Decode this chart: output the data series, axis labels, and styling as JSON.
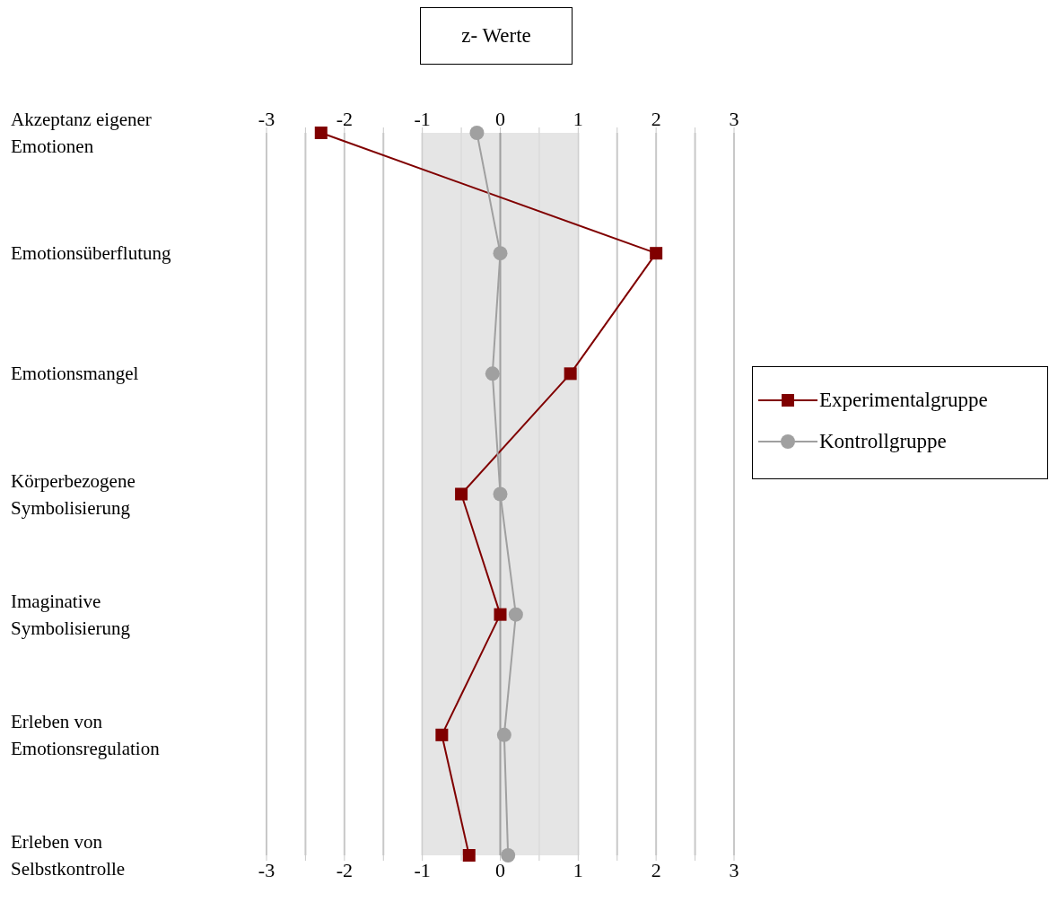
{
  "chart_data": {
    "type": "line",
    "title": "z- Werte",
    "orientation": "horizontal",
    "categories": [
      "Akzeptanz eigener Emotionen",
      "Emotionsüberflutung",
      "Emotionsmangel",
      "Körperbezogene Symbolisierung",
      "Imaginative Symbolisierung",
      "Erleben von Emotionsregulation",
      "Erleben von Selbstkontrolle"
    ],
    "series": [
      {
        "name": "Experimentalgruppe",
        "color": "#800000",
        "marker": "square",
        "values": [
          -2.3,
          2.0,
          0.9,
          -0.5,
          0.0,
          -0.75,
          -0.4
        ]
      },
      {
        "name": "Kontrollgruppe",
        "color": "#a0a0a0",
        "marker": "circle",
        "values": [
          -0.3,
          0.0,
          -0.1,
          0.0,
          0.2,
          0.05,
          0.1
        ]
      }
    ],
    "xlim": [
      -3,
      3
    ],
    "xticks": [
      -3,
      {
        "value": -2.5,
        "label": null
      },
      -2,
      {
        "value": -1.5,
        "label": null
      },
      -1,
      {
        "value": -0.5,
        "label": null
      },
      0,
      {
        "value": 0.5,
        "label": null
      },
      1,
      {
        "value": 1.5,
        "label": null
      },
      2,
      {
        "value": 2.5,
        "label": null
      },
      3
    ],
    "x2lim": [
      -3,
      3
    ],
    "x2ticks": [
      -3,
      {
        "value": -2.5,
        "label": null
      },
      -2,
      {
        "value": -1.5,
        "label": null
      },
      -1,
      {
        "value": -0.5,
        "label": null
      },
      0,
      {
        "value": 0.5,
        "label": null
      },
      1,
      {
        "value": 1.5,
        "label": null
      },
      2,
      {
        "value": 2.5,
        "label": null
      },
      3
    ],
    "bands": [
      {
        "axis": "x",
        "from": -1,
        "to": 1,
        "color": "#e0e0e0"
      }
    ],
    "ref_lines": [
      {
        "axis": "x",
        "value": 0,
        "color": "#a0a0a0"
      }
    ],
    "grid": "x",
    "legend": "right",
    "line_style": "solid"
  }
}
